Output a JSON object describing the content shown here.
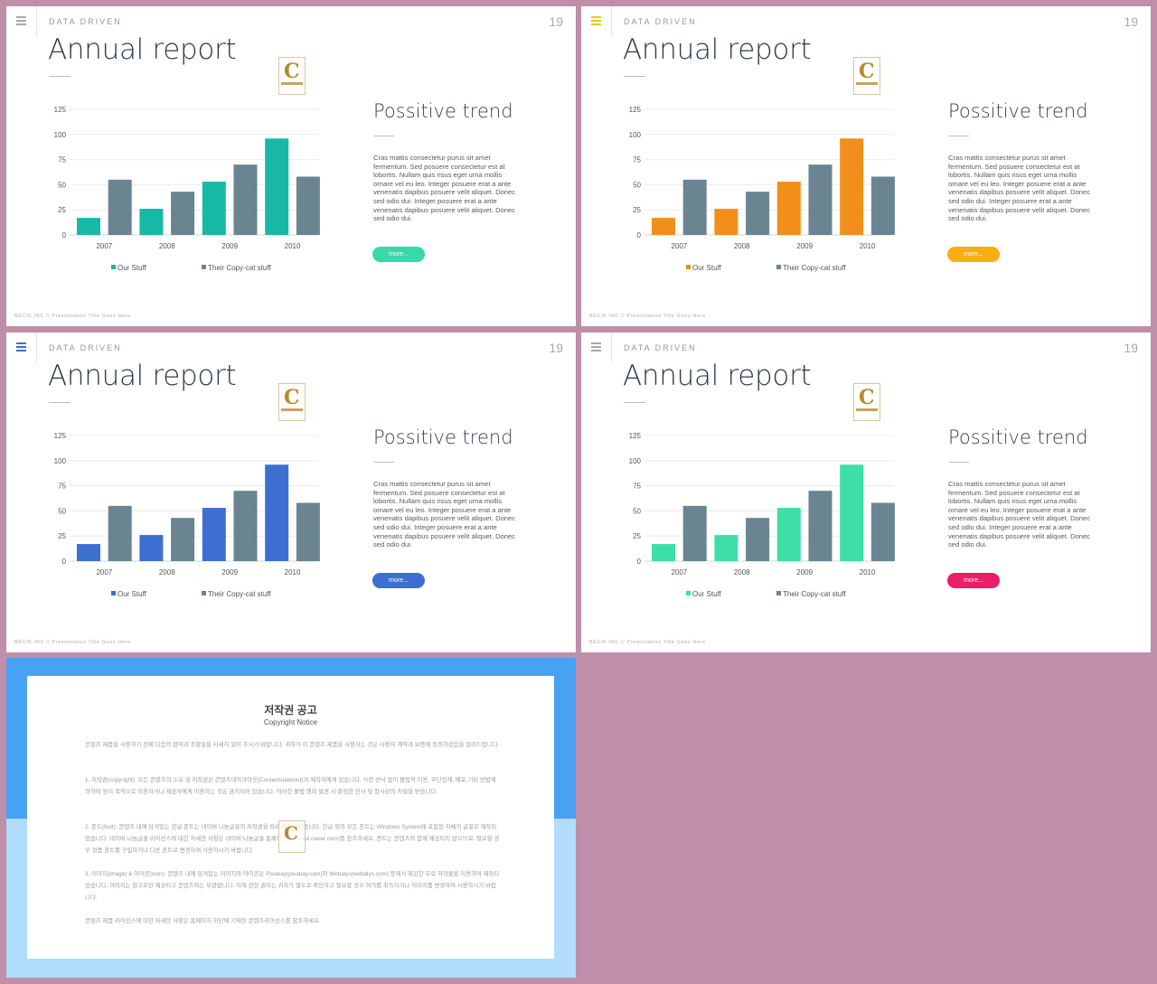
{
  "slides": [
    {
      "accent": "#17b8a6",
      "button": "#37d9a8",
      "menu_color": "#a9a9a9"
    },
    {
      "accent": "#f28f1c",
      "button": "#fbad14",
      "menu_color": "#f0c419"
    },
    {
      "accent": "#3d6fd1",
      "button": "#3d6fd1",
      "menu_color": "#3d6fd1"
    },
    {
      "accent": "#3ddfa6",
      "button": "#e81e6a",
      "menu_color": "#a9a9a9"
    }
  ],
  "common": {
    "eyebrow": "DATA DRIVEN",
    "page_number": "19",
    "title": "Annual report",
    "heading": "Possitive trend",
    "body": "Cras mattis consectetur purus sit amet fermentum. Sed posuere consectetur est at lobortis. Nullam quis risus eget urna mollis ornare vel eu leo. Integer posuere erat a ante venenatis dapibus posuere velit aliquet. Donec sed odio dui. Integer posuere erat a ante venenatis dapibus posuere velit aliquet. Donec sed odio dui.",
    "button_label": "more...",
    "footer": "BECIK.INC  //  Presentation  Title  Goes  Here",
    "menu_icon": "hamburger-icon",
    "stamp_icon": "contents-logo-icon"
  },
  "chart_data": {
    "type": "bar",
    "categories": [
      "2007",
      "2008",
      "2009",
      "2010"
    ],
    "series": [
      {
        "name": "Our Stuff",
        "values": [
          17,
          26,
          53,
          96
        ]
      },
      {
        "name": "Their Copy-cat stuff",
        "values": [
          55,
          43,
          70,
          58
        ]
      }
    ],
    "ylim": [
      0,
      125
    ],
    "yticks": [
      0,
      25,
      50,
      75,
      100,
      125
    ],
    "grid": true,
    "legend_position": "bottom"
  },
  "notice": {
    "title": "저작권 공고",
    "subtitle": "Copyright Notice",
    "paragraphs": [
      "콘텐츠 제품을 사용하기 전에 다음의 협약과 조항들을 자세히 읽어 주시기 바랍니다. 귀하가 이 콘텐츠 제품을 사용하는 것은 사용자 계약과 보증에 동의하셨음을 알려드립니다.",
      "1. 저작권(copyright): 모든 콘텐츠의 소유 및 저작권은 콘텐츠테이크아웃(Contentstakeout)과 제작자에게 있습니다. 사전 승낙 없이 불법적 이용, 무단전재, 배포 기타 방법에 의하여 영리 목적으로 이용하거나 제삼자에게 이용하는 것은 금지되어 있습니다. 이러한 불법 행위 발견 시 준엄한 민사 및 형사상의 처벌을 받습니다.",
      "2. 폰트(font): 콘텐츠 내에 담겨있는 한글 폰트는 네이버 나눔글꼴의 저작권을 따라 제작되었습니다. 한글 외의 모든 폰트는 Windows System에 포함된 자체의 글꼴로 제작되었습니다. 네이버 나눔글꼴 라이선스에 대한 자세한 사항은 네이버 나눔글꼴 홈페이지(hangeul.naver.com)를 참조하세요. 폰트는 콘텐츠와 함께 제공되지 않으므로, 필요할 경우 정품 폰트를 구입하거나 다른 폰트로 변경하여 사용하시기 바랍니다.",
      "3. 이미지(image) & 아이콘(icon): 콘텐츠 내에 담겨있는 이미지와 아이콘은 Pixabay(pixabay.com)와 Webalys(webalys.com) 등에서 제공한 무료 저작물을 이용하여 제작되었습니다. 이미지는 참고로만 제공되고 콘텐츠와는 무관합니다. 이에 관한 권리는 귀하가 별도로 확인하고 필요할 경우 허가를 취득하거나 이미지를 변경하여 사용하시기 바랍니다.",
      "콘텐츠 제품 라이선스에 대한 자세한 사항은 홈페이지 하단에 기재된 콘텐츠라이선스를 참조하세요."
    ]
  }
}
